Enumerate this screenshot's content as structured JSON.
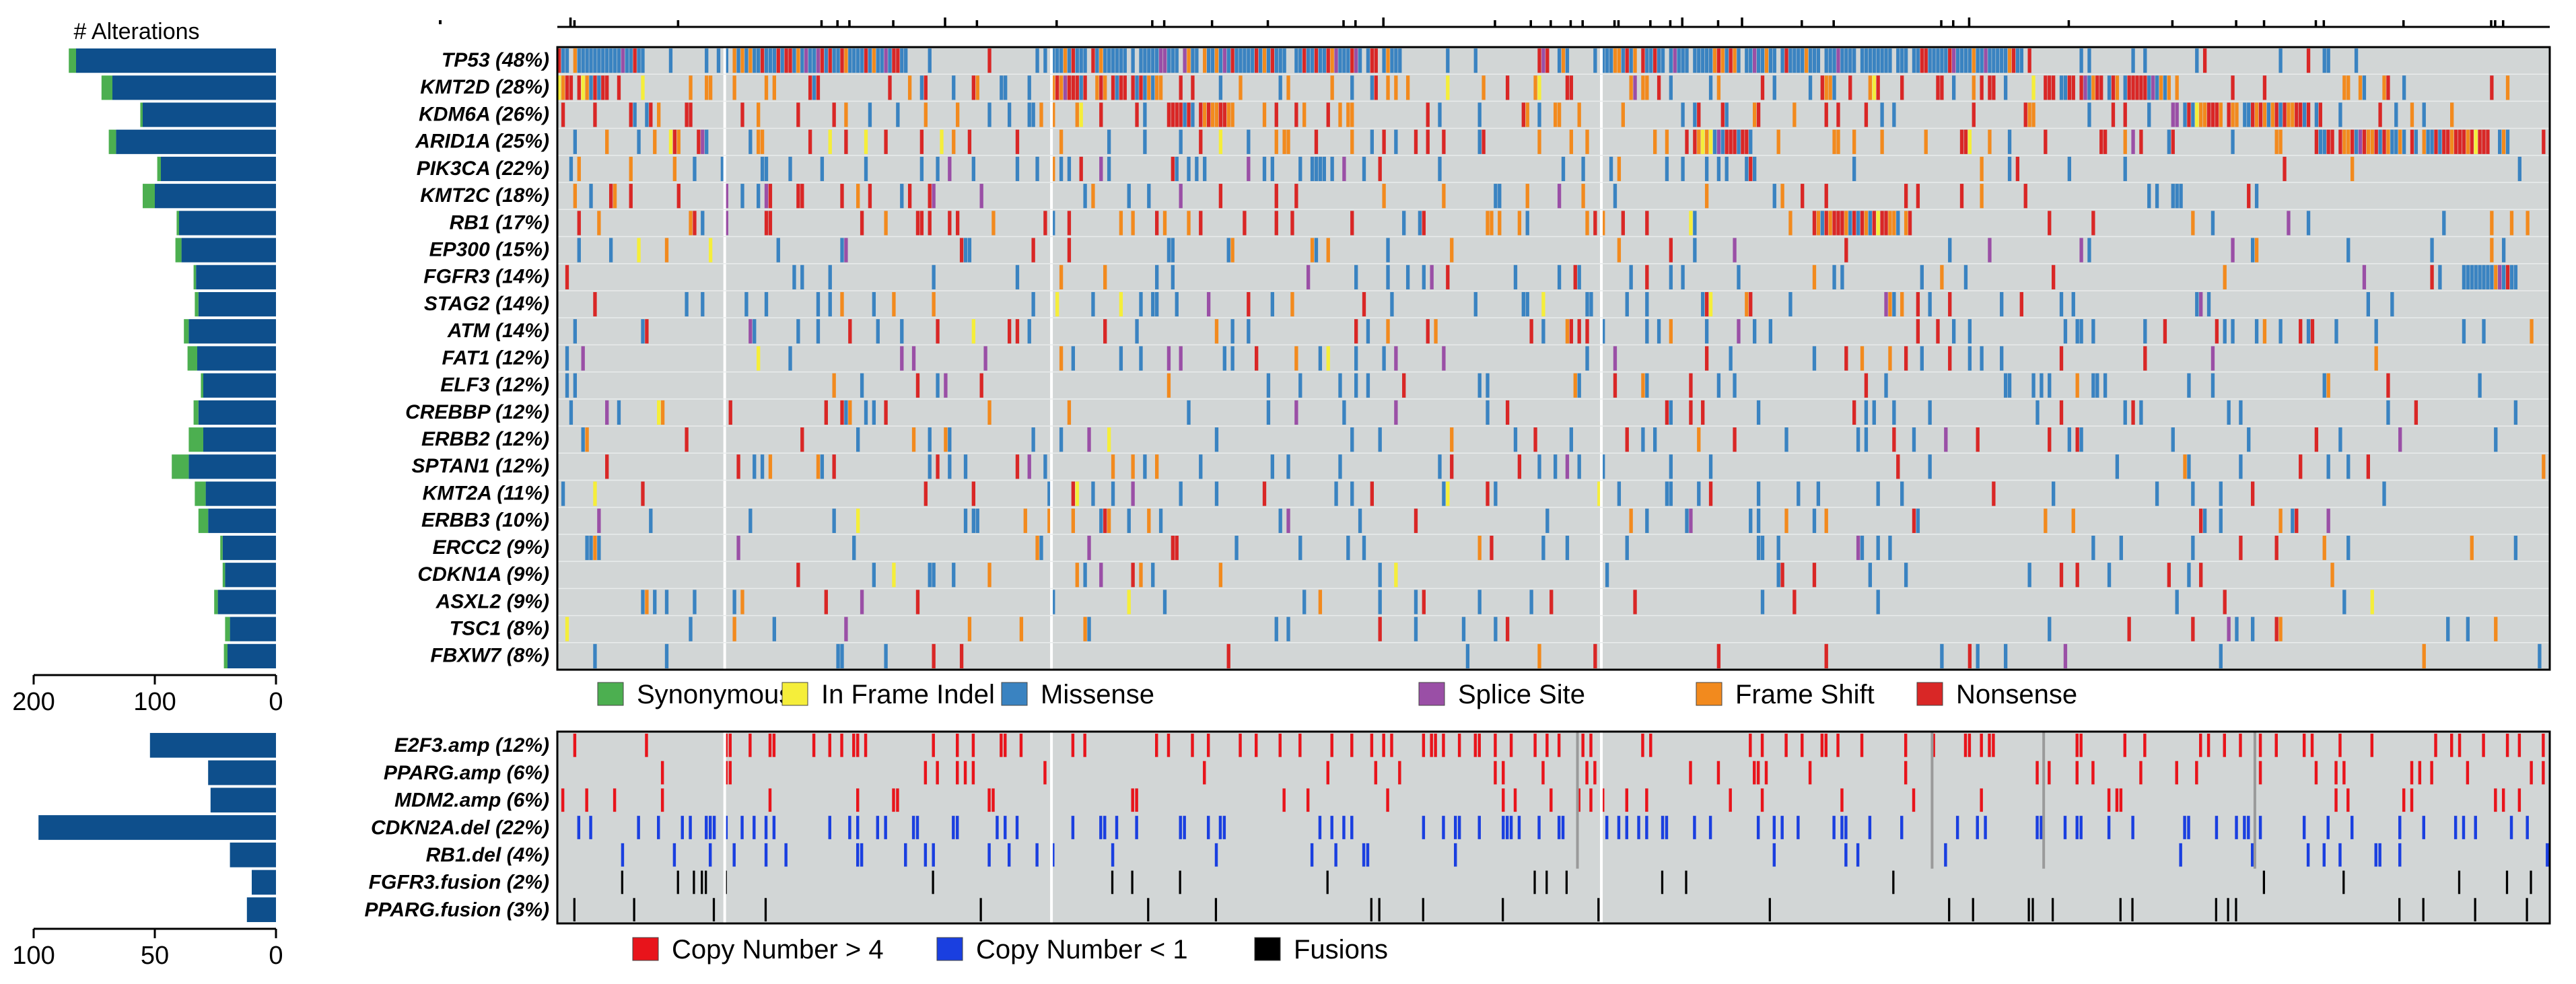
{
  "chart_data": [
    {
      "type": "oncoprint",
      "panel": "mutations",
      "bar_title": "# Alterations",
      "bar_axis_ticks": [
        "200",
        "100",
        "0"
      ],
      "bar_xlim": [
        0,
        200
      ],
      "genes": [
        {
          "label": "TP53 (48%)",
          "pct": 48,
          "count": 165,
          "syn": 6
        },
        {
          "label": "KMT2D (28%)",
          "pct": 28,
          "count": 135,
          "syn": 9
        },
        {
          "label": "KDM6A (26%)",
          "pct": 26,
          "count": 110,
          "syn": 2
        },
        {
          "label": "ARID1A (25%)",
          "pct": 25,
          "count": 132,
          "syn": 6
        },
        {
          "label": "PIK3CA (22%)",
          "pct": 22,
          "count": 95,
          "syn": 3
        },
        {
          "label": "KMT2C (18%)",
          "pct": 18,
          "count": 100,
          "syn": 10
        },
        {
          "label": "RB1 (17%)",
          "pct": 17,
          "count": 80,
          "syn": 2
        },
        {
          "label": "EP300 (15%)",
          "pct": 15,
          "count": 78,
          "syn": 5
        },
        {
          "label": "FGFR3 (14%)",
          "pct": 14,
          "count": 66,
          "syn": 2
        },
        {
          "label": "STAG2 (14%)",
          "pct": 14,
          "count": 64,
          "syn": 3
        },
        {
          "label": "ATM (14%)",
          "pct": 14,
          "count": 72,
          "syn": 4
        },
        {
          "label": "FAT1 (12%)",
          "pct": 12,
          "count": 65,
          "syn": 8
        },
        {
          "label": "ELF3 (12%)",
          "pct": 12,
          "count": 60,
          "syn": 2
        },
        {
          "label": "CREBBP (12%)",
          "pct": 12,
          "count": 64,
          "syn": 4
        },
        {
          "label": "ERBB2 (12%)",
          "pct": 12,
          "count": 60,
          "syn": 12
        },
        {
          "label": "SPTAN1 (12%)",
          "pct": 12,
          "count": 72,
          "syn": 14
        },
        {
          "label": "KMT2A (11%)",
          "pct": 11,
          "count": 58,
          "syn": 9
        },
        {
          "label": "ERBB3 (10%)",
          "pct": 10,
          "count": 56,
          "syn": 8
        },
        {
          "label": "ERCC2 (9%)",
          "pct": 9,
          "count": 44,
          "syn": 2
        },
        {
          "label": "CDKN1A (9%)",
          "pct": 9,
          "count": 42,
          "syn": 2
        },
        {
          "label": "ASXL2 (9%)",
          "pct": 9,
          "count": 48,
          "syn": 3
        },
        {
          "label": "TSC1 (8%)",
          "pct": 8,
          "count": 38,
          "syn": 4
        },
        {
          "label": "FBXW7 (8%)",
          "pct": 8,
          "count": 40,
          "syn": 3
        }
      ],
      "legend": [
        {
          "label": "Synonymous",
          "color": "#4caf50",
          "key": "S"
        },
        {
          "label": "In Frame Indel",
          "color": "#f5ee3a",
          "key": "I"
        },
        {
          "label": "Missense",
          "color": "#3a83c1",
          "key": "M"
        },
        {
          "label": "Splice Site",
          "color": "#9a4fa6",
          "key": "P"
        },
        {
          "label": "Frame Shift",
          "color": "#f28a1e",
          "key": "F"
        },
        {
          "label": "Nonsense",
          "color": "#d92726",
          "key": "N"
        }
      ]
    },
    {
      "type": "oncoprint",
      "panel": "copy_number_and_fusions",
      "bar_axis_ticks": [
        "100",
        "50",
        "0"
      ],
      "bar_xlim": [
        0,
        100
      ],
      "events": [
        {
          "label": "E2F3.amp (12%)",
          "pct": 12,
          "count": 52,
          "kind": "amp"
        },
        {
          "label": "PPARG.amp (6%)",
          "pct": 6,
          "count": 28,
          "kind": "amp"
        },
        {
          "label": "MDM2.amp (6%)",
          "pct": 6,
          "count": 27,
          "kind": "amp"
        },
        {
          "label": "CDKN2A.del (22%)",
          "pct": 22,
          "count": 98,
          "kind": "del"
        },
        {
          "label": "RB1.del (4%)",
          "pct": 4,
          "count": 19,
          "kind": "del"
        },
        {
          "label": "FGFR3.fusion (2%)",
          "pct": 2,
          "count": 10,
          "kind": "fusion"
        },
        {
          "label": "PPARG.fusion (3%)",
          "pct": 3,
          "count": 12,
          "kind": "fusion"
        }
      ],
      "legend": [
        {
          "label": "Copy Number > 4",
          "color": "#e8141b",
          "key": "amp"
        },
        {
          "label": "Copy Number < 1",
          "color": "#1a3fe0",
          "key": "del"
        },
        {
          "label": "Fusions",
          "color": "#000000",
          "key": "fusion"
        }
      ]
    }
  ],
  "colors": {
    "bar": "#0e4f8c",
    "synonymous_bar": "#4caf50",
    "cell_bg": "#d2d6d6",
    "separator": "#ffffff",
    "frame": "#000000"
  }
}
